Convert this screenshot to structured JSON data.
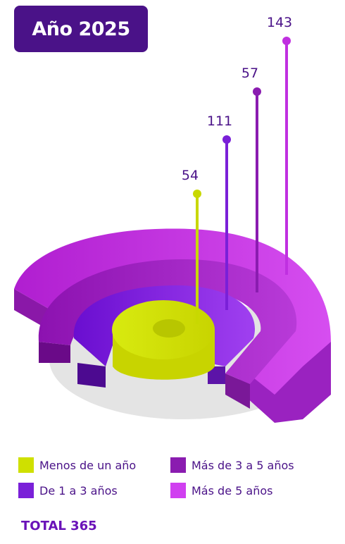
{
  "title": "Año 2025",
  "chart_data": {
    "type": "bar",
    "title": "Año 2025",
    "categories": [
      "Menos de un año",
      "De 1 a 3 años",
      "Más de 3 a 5 años",
      "Más de 5 años"
    ],
    "values": [
      54,
      111,
      57,
      143
    ],
    "colors": [
      "#cfe000",
      "#8a2ce0",
      "#a52cc8",
      "#cc4ce8"
    ],
    "dark_colors": [
      "#a8b800",
      "#5c14a8",
      "#7a1898",
      "#9a2cb8"
    ],
    "legend_position": "bottom"
  },
  "legend": [
    {
      "label": "Menos de un año",
      "color": "#cfe000"
    },
    {
      "label": "De 1 a 3 años",
      "color": "#8a2ce0"
    },
    {
      "label": "Más de 3 a 5 años",
      "color": "#a52cc8"
    },
    {
      "label": "Más de 5 años",
      "color": "#cc4ce8"
    }
  ],
  "total_text": "TOTAL 365"
}
